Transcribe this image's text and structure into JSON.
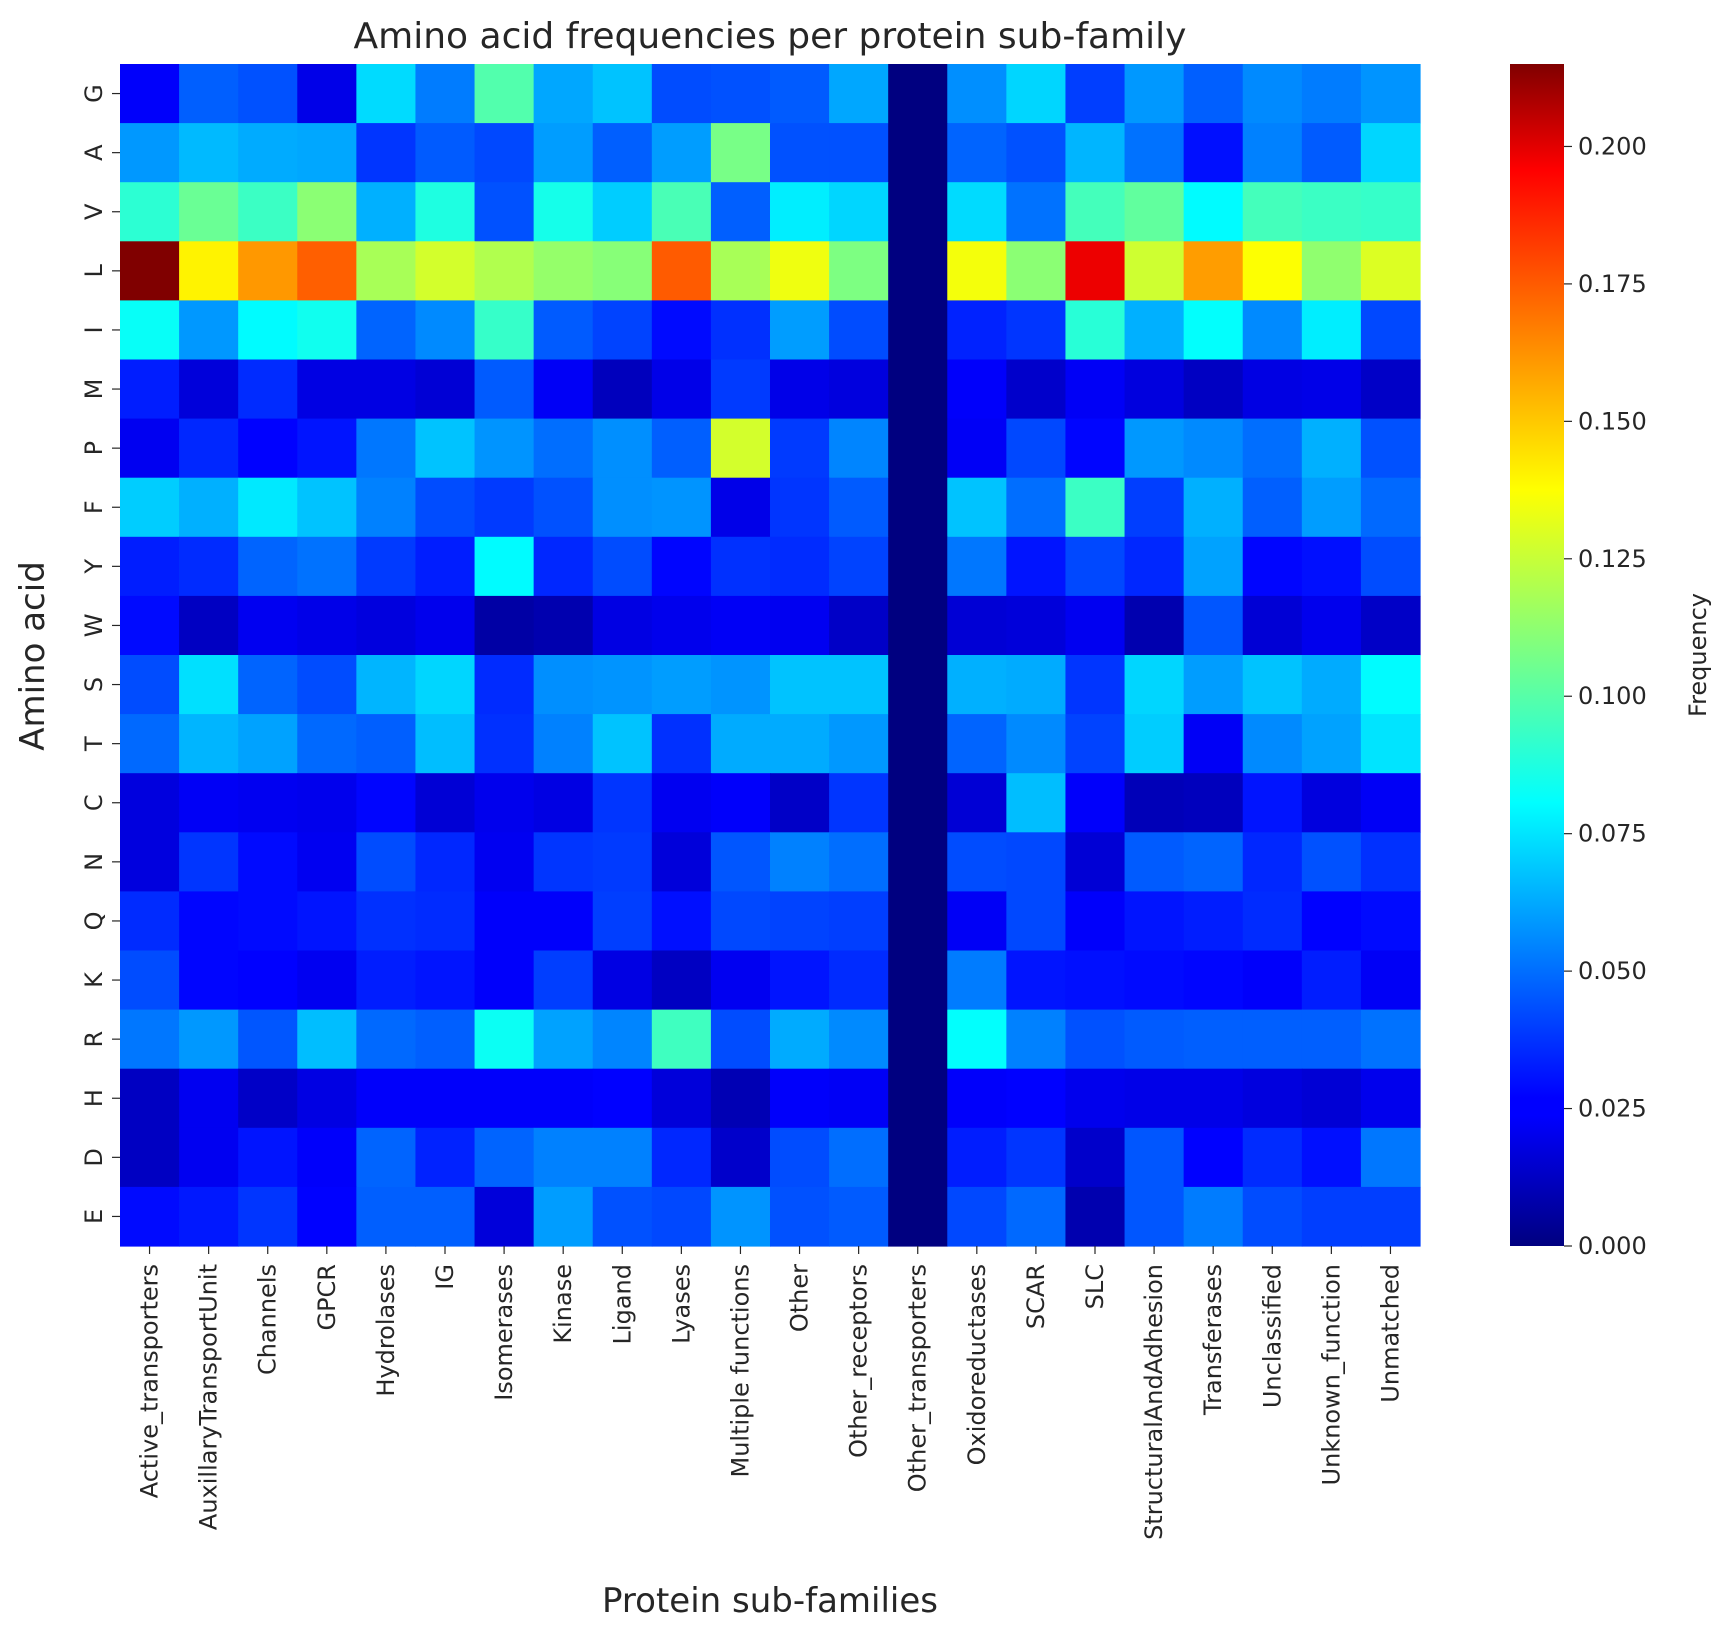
{
  "chart_data": {
    "type": "heatmap",
    "title": "Amino acid frequencies per protein sub-family",
    "xlabel": "Protein sub-families",
    "ylabel": "Amino acid",
    "colorbar_label": "Frequency",
    "colormap": "jet",
    "vmin": 0.0,
    "vmax": 0.215,
    "colorbar_ticks": [
      "0.000",
      "0.025",
      "0.050",
      "0.075",
      "0.100",
      "0.125",
      "0.150",
      "0.175",
      "0.200"
    ],
    "x_categories": [
      "Active_transporters",
      "AuxillaryTransportUnit",
      "Channels",
      "GPCR",
      "Hydrolases",
      "IG",
      "Isomerases",
      "Kinase",
      "Ligand",
      "Lyases",
      "Multiple functions",
      "Other",
      "Other_receptors",
      "Other_transporters",
      "Oxidoreductases",
      "SCAR",
      "SLC",
      "StructuralAndAdhesion",
      "Transferases",
      "Unclassified",
      "Unknown_function",
      "Unmatched"
    ],
    "y_categories": [
      "G",
      "A",
      "V",
      "L",
      "I",
      "M",
      "P",
      "F",
      "Y",
      "W",
      "S",
      "T",
      "C",
      "N",
      "Q",
      "K",
      "R",
      "H",
      "D",
      "E"
    ],
    "values": [
      [
        0.026,
        0.047,
        0.044,
        0.022,
        0.073,
        0.053,
        0.098,
        0.062,
        0.068,
        0.043,
        0.044,
        0.046,
        0.062,
        0.0,
        0.057,
        0.072,
        0.04,
        0.059,
        0.047,
        0.056,
        0.053,
        0.058
      ],
      [
        0.059,
        0.066,
        0.063,
        0.062,
        0.038,
        0.046,
        0.042,
        0.06,
        0.047,
        0.06,
        0.106,
        0.044,
        0.044,
        0.0,
        0.048,
        0.044,
        0.065,
        0.051,
        0.03,
        0.054,
        0.046,
        0.072
      ],
      [
        0.09,
        0.103,
        0.093,
        0.11,
        0.064,
        0.087,
        0.044,
        0.085,
        0.07,
        0.096,
        0.047,
        0.077,
        0.072,
        0.0,
        0.073,
        0.051,
        0.095,
        0.101,
        0.08,
        0.095,
        0.093,
        0.092
      ],
      [
        0.215,
        0.137,
        0.156,
        0.168,
        0.116,
        0.125,
        0.118,
        0.112,
        0.109,
        0.169,
        0.116,
        0.131,
        0.107,
        0.0,
        0.132,
        0.11,
        0.192,
        0.124,
        0.155,
        0.134,
        0.111,
        0.127
      ],
      [
        0.082,
        0.059,
        0.08,
        0.084,
        0.048,
        0.056,
        0.092,
        0.046,
        0.041,
        0.029,
        0.037,
        0.06,
        0.043,
        0.0,
        0.034,
        0.038,
        0.089,
        0.064,
        0.081,
        0.056,
        0.077,
        0.042
      ],
      [
        0.033,
        0.019,
        0.036,
        0.021,
        0.021,
        0.018,
        0.046,
        0.025,
        0.013,
        0.022,
        0.039,
        0.022,
        0.02,
        0.0,
        0.026,
        0.016,
        0.025,
        0.02,
        0.014,
        0.021,
        0.022,
        0.015
      ],
      [
        0.024,
        0.035,
        0.027,
        0.031,
        0.052,
        0.068,
        0.058,
        0.05,
        0.057,
        0.047,
        0.125,
        0.039,
        0.055,
        0.0,
        0.025,
        0.042,
        0.028,
        0.059,
        0.056,
        0.05,
        0.064,
        0.044
      ],
      [
        0.07,
        0.064,
        0.076,
        0.068,
        0.054,
        0.043,
        0.039,
        0.044,
        0.057,
        0.058,
        0.022,
        0.038,
        0.046,
        0.0,
        0.068,
        0.05,
        0.093,
        0.04,
        0.064,
        0.047,
        0.06,
        0.049
      ],
      [
        0.033,
        0.036,
        0.048,
        0.051,
        0.039,
        0.033,
        0.08,
        0.035,
        0.043,
        0.028,
        0.037,
        0.036,
        0.041,
        0.0,
        0.052,
        0.031,
        0.042,
        0.035,
        0.061,
        0.028,
        0.03,
        0.043
      ],
      [
        0.029,
        0.014,
        0.024,
        0.022,
        0.02,
        0.023,
        0.008,
        0.01,
        0.021,
        0.023,
        0.025,
        0.024,
        0.015,
        0.0,
        0.018,
        0.019,
        0.024,
        0.01,
        0.045,
        0.018,
        0.023,
        0.015
      ],
      [
        0.043,
        0.074,
        0.048,
        0.043,
        0.065,
        0.072,
        0.036,
        0.057,
        0.058,
        0.06,
        0.058,
        0.068,
        0.068,
        0.0,
        0.064,
        0.063,
        0.038,
        0.072,
        0.06,
        0.068,
        0.063,
        0.08
      ],
      [
        0.049,
        0.065,
        0.061,
        0.049,
        0.047,
        0.067,
        0.037,
        0.054,
        0.068,
        0.037,
        0.063,
        0.063,
        0.059,
        0.0,
        0.048,
        0.056,
        0.041,
        0.07,
        0.025,
        0.056,
        0.061,
        0.075
      ],
      [
        0.02,
        0.025,
        0.024,
        0.023,
        0.028,
        0.018,
        0.023,
        0.021,
        0.038,
        0.024,
        0.026,
        0.015,
        0.038,
        0.0,
        0.018,
        0.067,
        0.026,
        0.012,
        0.013,
        0.031,
        0.02,
        0.025
      ],
      [
        0.02,
        0.038,
        0.029,
        0.024,
        0.043,
        0.035,
        0.024,
        0.038,
        0.039,
        0.019,
        0.045,
        0.054,
        0.05,
        0.0,
        0.043,
        0.042,
        0.018,
        0.046,
        0.048,
        0.035,
        0.044,
        0.037
      ],
      [
        0.036,
        0.028,
        0.029,
        0.031,
        0.037,
        0.036,
        0.026,
        0.026,
        0.04,
        0.03,
        0.042,
        0.041,
        0.04,
        0.0,
        0.025,
        0.042,
        0.026,
        0.031,
        0.033,
        0.036,
        0.027,
        0.029
      ],
      [
        0.043,
        0.028,
        0.027,
        0.024,
        0.033,
        0.031,
        0.026,
        0.04,
        0.021,
        0.014,
        0.024,
        0.031,
        0.036,
        0.0,
        0.053,
        0.031,
        0.03,
        0.029,
        0.028,
        0.026,
        0.033,
        0.025
      ],
      [
        0.052,
        0.059,
        0.045,
        0.067,
        0.049,
        0.047,
        0.083,
        0.061,
        0.055,
        0.094,
        0.043,
        0.063,
        0.056,
        0.0,
        0.081,
        0.054,
        0.044,
        0.046,
        0.047,
        0.047,
        0.047,
        0.051
      ],
      [
        0.014,
        0.024,
        0.015,
        0.021,
        0.026,
        0.026,
        0.026,
        0.026,
        0.027,
        0.019,
        0.011,
        0.026,
        0.025,
        0.0,
        0.026,
        0.027,
        0.023,
        0.022,
        0.022,
        0.02,
        0.018,
        0.023
      ],
      [
        0.014,
        0.024,
        0.031,
        0.026,
        0.048,
        0.034,
        0.048,
        0.054,
        0.054,
        0.035,
        0.016,
        0.043,
        0.05,
        0.0,
        0.033,
        0.038,
        0.016,
        0.045,
        0.027,
        0.036,
        0.03,
        0.052
      ],
      [
        0.029,
        0.032,
        0.038,
        0.027,
        0.047,
        0.047,
        0.019,
        0.06,
        0.044,
        0.042,
        0.058,
        0.044,
        0.046,
        0.0,
        0.042,
        0.049,
        0.01,
        0.045,
        0.053,
        0.043,
        0.04,
        0.04
      ]
    ]
  }
}
